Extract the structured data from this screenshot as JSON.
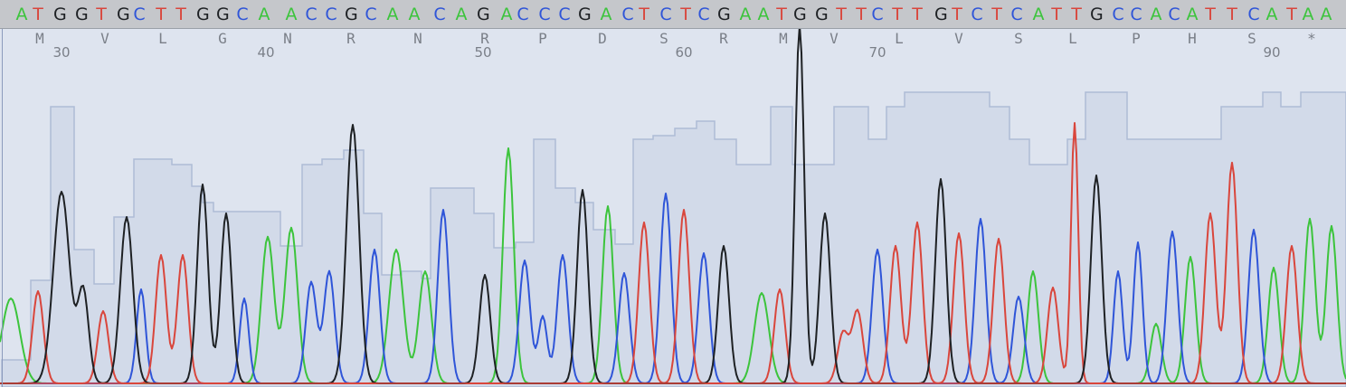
{
  "sequence_bases": [
    "A",
    "T",
    "G",
    "G",
    "T",
    "G",
    "C",
    "T",
    "T",
    "G",
    "G",
    "C",
    "A",
    "A",
    "C",
    "C",
    "G",
    "C",
    "A",
    "A",
    "C",
    "A",
    "G",
    "A",
    "C",
    "C",
    "C",
    "G",
    "A",
    "C",
    "T",
    "C",
    "T",
    "C",
    "G",
    "A",
    "A",
    "T",
    "G",
    "G",
    "T",
    "T",
    "C",
    "T",
    "T",
    "G",
    "T",
    "C",
    "T",
    "C",
    "A",
    "T",
    "T",
    "G",
    "C",
    "C",
    "A",
    "C",
    "A",
    "T",
    "T",
    "C",
    "A",
    "T",
    "A",
    "A"
  ],
  "amino_acids": [
    "M",
    "V",
    "L",
    "G",
    "N",
    "R",
    "N",
    "R",
    "P",
    "D",
    "S",
    "R",
    "M",
    "V",
    "L",
    "V",
    "S",
    "L",
    "P",
    "H",
    "S",
    "*"
  ],
  "positions": [
    "30",
    "40",
    "50",
    "60",
    "70",
    "90"
  ],
  "colors": {
    "A": "#3cc43c",
    "C": "#2f55d8",
    "G": "#1e2124",
    "T": "#d9463c",
    "quality": "#c8d2e4"
  }
}
